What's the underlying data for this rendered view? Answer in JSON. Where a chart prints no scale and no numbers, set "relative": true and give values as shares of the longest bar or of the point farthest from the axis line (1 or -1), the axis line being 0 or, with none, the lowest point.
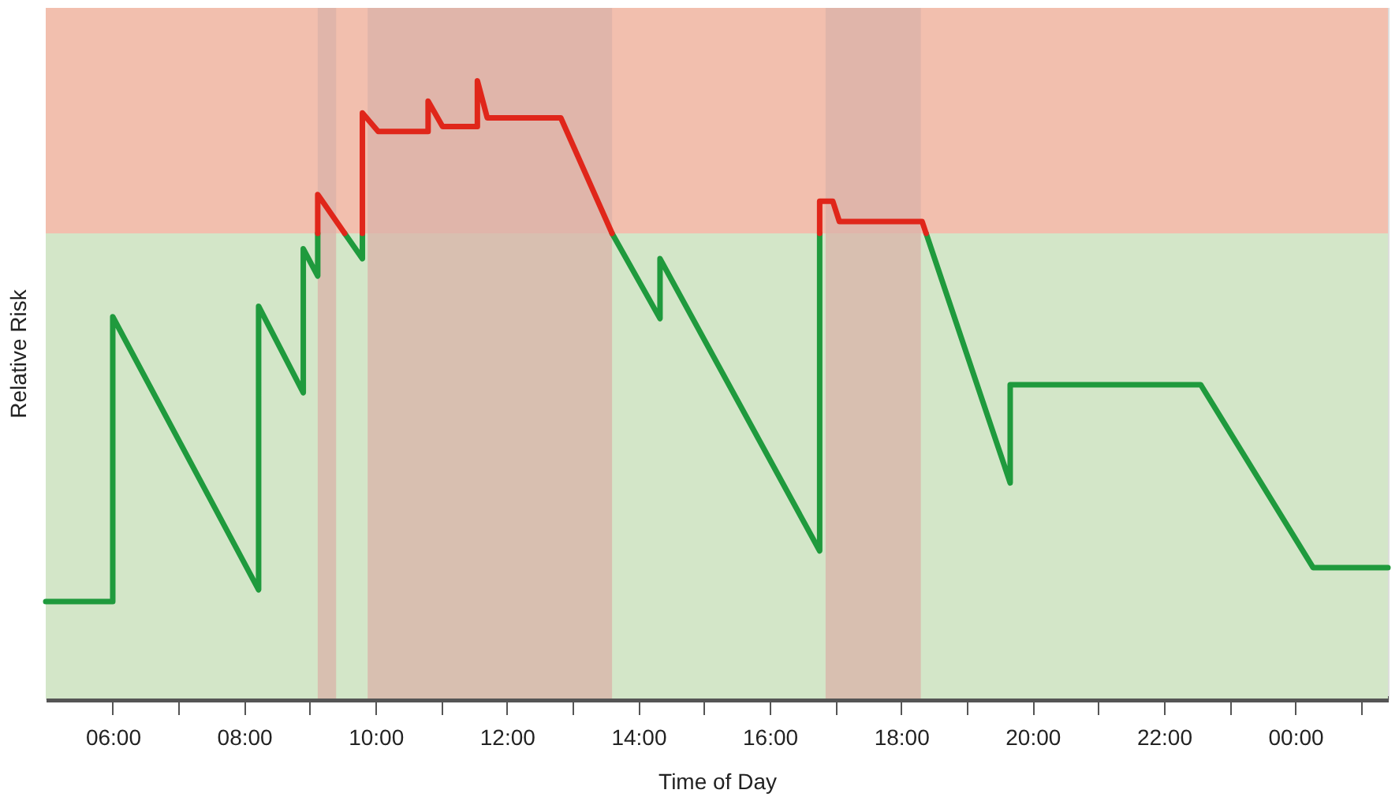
{
  "chart_data": {
    "type": "line",
    "relative": true,
    "xlabel": "Time of Day",
    "ylabel": "Relative Risk",
    "xlim": [
      4.98,
      25.41
    ],
    "xticks": [
      {
        "value": 6,
        "label": "06:00"
      },
      {
        "value": 7,
        "label": null
      },
      {
        "value": 8,
        "label": "08:00"
      },
      {
        "value": 9,
        "label": null
      },
      {
        "value": 10,
        "label": "10:00"
      },
      {
        "value": 11,
        "label": null
      },
      {
        "value": 12,
        "label": "12:00"
      },
      {
        "value": 13,
        "label": null
      },
      {
        "value": 14,
        "label": "14:00"
      },
      {
        "value": 15,
        "label": null
      },
      {
        "value": 16,
        "label": "16:00"
      },
      {
        "value": 17,
        "label": null
      },
      {
        "value": 18,
        "label": "18:00"
      },
      {
        "value": 19,
        "label": null
      },
      {
        "value": 20,
        "label": "20:00"
      },
      {
        "value": 21,
        "label": null
      },
      {
        "value": 22,
        "label": "22:00"
      },
      {
        "value": 23,
        "label": null
      },
      {
        "value": 24,
        "label": "00:00"
      },
      {
        "value": 25,
        "label": null
      }
    ],
    "series": [
      {
        "color": "#1f9a3d",
        "x": [
          4.98,
          6.0,
          6.0,
          8.22,
          8.22,
          8.9,
          8.9,
          9.12,
          9.12,
          null,
          9.53,
          9.8,
          9.8,
          null,
          13.6,
          14.33,
          14.33,
          16.76,
          16.76,
          null,
          18.38,
          19.66,
          19.66,
          22.56,
          24.27,
          25.41
        ],
        "values": [
          0.157,
          0.157,
          0.618,
          0.176,
          0.635,
          0.495,
          0.728,
          0.684,
          0.753,
          null,
          0.753,
          0.712,
          0.753,
          null,
          0.753,
          0.615,
          0.712,
          0.239,
          0.753,
          null,
          0.753,
          0.349,
          0.508,
          0.508,
          0.212,
          0.212
        ]
      },
      {
        "color": "#e0261a",
        "x": [
          9.12,
          9.12,
          9.53,
          null,
          9.8,
          9.8,
          10.04,
          10.8,
          10.8,
          11.02,
          11.55,
          11.55,
          11.7,
          12.82,
          13.6,
          null,
          16.76,
          16.76,
          16.96,
          17.06,
          18.32,
          18.38
        ],
        "values": [
          0.753,
          0.816,
          0.753,
          null,
          0.753,
          0.948,
          0.918,
          0.918,
          0.967,
          0.926,
          0.926,
          1.0,
          0.94,
          0.94,
          0.753,
          null,
          0.753,
          0.805,
          0.805,
          0.772,
          0.772,
          0.753
        ]
      }
    ],
    "bands": [
      {
        "axis": "y",
        "from": 0,
        "to": 0.753,
        "color": "#d3e6c8"
      },
      {
        "axis": "y",
        "from": 0.753,
        "to": 1.118,
        "color": "#f2bfae"
      },
      {
        "axis": "x",
        "from": 9.12,
        "to": 9.4,
        "color": "#d9b2a8"
      },
      {
        "axis": "x",
        "from": 9.88,
        "to": 13.6,
        "color": "#d9b2a8"
      },
      {
        "axis": "x",
        "from": 16.85,
        "to": 18.3,
        "color": "#d9b2a8"
      }
    ],
    "line_style": "solid"
  }
}
